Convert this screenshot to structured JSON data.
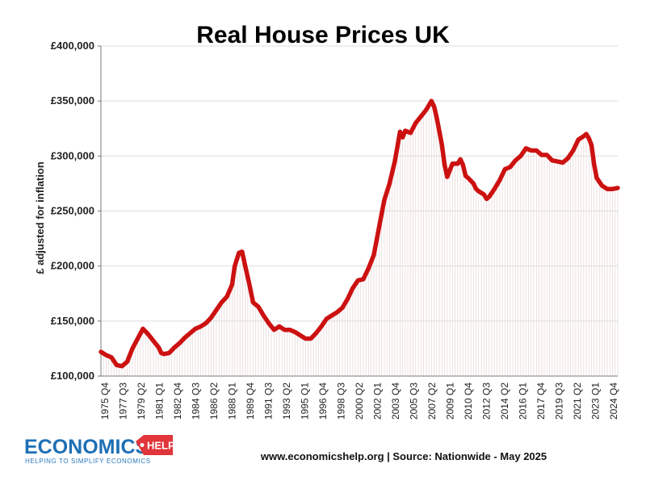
{
  "chart_data": {
    "type": "line",
    "title": "Real House Prices UK",
    "ylabel": "£ adjusted for inflation",
    "xlabel": "",
    "ylim": [
      100000,
      400000
    ],
    "yticks": [
      100000,
      150000,
      200000,
      250000,
      300000,
      350000,
      400000
    ],
    "ytick_labels": [
      "£100,000",
      "£150,000",
      "£200,000",
      "£250,000",
      "£300,000",
      "£350,000",
      "£400,000"
    ],
    "x_tick_labels": [
      "1975 Q4",
      "1977 Q3",
      "1979 Q2",
      "1981 Q1",
      "1982 Q4",
      "1984 Q3",
      "1986 Q2",
      "1988 Q1",
      "1989 Q4",
      "1991 Q3",
      "1993 Q2",
      "1995 Q1",
      "1996 Q4",
      "1998 Q3",
      "2000 Q2",
      "2002 Q1",
      "2003 Q4",
      "2005 Q3",
      "2007 Q2",
      "2009 Q1",
      "2010 Q4",
      "2012 Q3",
      "2014 Q2",
      "2016 Q1",
      "2017 Q4",
      "2019 Q3",
      "2021 Q2",
      "2023 Q1",
      "2024 Q4"
    ],
    "x_range": [
      1975.75,
      2025.0
    ],
    "grid": true,
    "legend": "none",
    "series": [
      {
        "color": "#cc1111",
        "points": [
          [
            1975.75,
            122000
          ],
          [
            1976.25,
            119000
          ],
          [
            1976.75,
            117000
          ],
          [
            1977.25,
            110000
          ],
          [
            1977.75,
            109000
          ],
          [
            1978.25,
            113000
          ],
          [
            1978.75,
            125000
          ],
          [
            1979.25,
            134000
          ],
          [
            1979.75,
            143000
          ],
          [
            1980.25,
            138000
          ],
          [
            1980.75,
            132000
          ],
          [
            1981.25,
            126000
          ],
          [
            1981.5,
            121000
          ],
          [
            1981.75,
            120000
          ],
          [
            1982.25,
            121000
          ],
          [
            1982.75,
            126000
          ],
          [
            1983.25,
            130000
          ],
          [
            1983.75,
            135000
          ],
          [
            1984.25,
            139000
          ],
          [
            1984.75,
            143000
          ],
          [
            1985.25,
            145000
          ],
          [
            1985.75,
            148000
          ],
          [
            1986.25,
            153000
          ],
          [
            1986.75,
            160000
          ],
          [
            1987.25,
            167000
          ],
          [
            1987.75,
            172000
          ],
          [
            1988.25,
            183000
          ],
          [
            1988.5,
            200000
          ],
          [
            1988.9,
            212000
          ],
          [
            1989.2,
            213000
          ],
          [
            1989.5,
            200000
          ],
          [
            1989.9,
            183000
          ],
          [
            1990.25,
            167000
          ],
          [
            1990.75,
            163000
          ],
          [
            1991.25,
            155000
          ],
          [
            1991.75,
            148000
          ],
          [
            1992.25,
            142000
          ],
          [
            1992.75,
            145000
          ],
          [
            1993.25,
            142000
          ],
          [
            1993.75,
            142000
          ],
          [
            1994.25,
            140000
          ],
          [
            1994.75,
            137000
          ],
          [
            1995.25,
            134000
          ],
          [
            1995.75,
            134000
          ],
          [
            1996.25,
            139000
          ],
          [
            1996.75,
            145000
          ],
          [
            1997.25,
            152000
          ],
          [
            1997.75,
            155000
          ],
          [
            1998.25,
            158000
          ],
          [
            1998.75,
            162000
          ],
          [
            1999.25,
            170000
          ],
          [
            1999.75,
            180000
          ],
          [
            2000.25,
            187000
          ],
          [
            2000.75,
            188000
          ],
          [
            2001.25,
            198000
          ],
          [
            2001.75,
            210000
          ],
          [
            2002.25,
            235000
          ],
          [
            2002.75,
            260000
          ],
          [
            2003.25,
            275000
          ],
          [
            2003.75,
            295000
          ],
          [
            2004.25,
            322000
          ],
          [
            2004.5,
            317000
          ],
          [
            2004.75,
            323000
          ],
          [
            2005.25,
            321000
          ],
          [
            2005.75,
            330000
          ],
          [
            2006.25,
            336000
          ],
          [
            2006.75,
            342000
          ],
          [
            2007.25,
            350000
          ],
          [
            2007.5,
            345000
          ],
          [
            2007.75,
            335000
          ],
          [
            2008.25,
            310000
          ],
          [
            2008.5,
            292000
          ],
          [
            2008.75,
            281000
          ],
          [
            2009.25,
            293000
          ],
          [
            2009.75,
            293000
          ],
          [
            2010.0,
            297000
          ],
          [
            2010.25,
            292000
          ],
          [
            2010.5,
            282000
          ],
          [
            2010.75,
            280000
          ],
          [
            2011.25,
            275000
          ],
          [
            2011.5,
            270000
          ],
          [
            2011.75,
            268000
          ],
          [
            2012.25,
            265000
          ],
          [
            2012.5,
            261000
          ],
          [
            2012.75,
            263000
          ],
          [
            2013.25,
            270000
          ],
          [
            2013.75,
            278000
          ],
          [
            2014.25,
            288000
          ],
          [
            2014.75,
            290000
          ],
          [
            2015.25,
            296000
          ],
          [
            2015.75,
            300000
          ],
          [
            2016.25,
            307000
          ],
          [
            2016.75,
            305000
          ],
          [
            2017.25,
            305000
          ],
          [
            2017.75,
            301000
          ],
          [
            2018.25,
            301000
          ],
          [
            2018.75,
            296000
          ],
          [
            2019.25,
            295000
          ],
          [
            2019.75,
            294000
          ],
          [
            2020.25,
            298000
          ],
          [
            2020.75,
            305000
          ],
          [
            2021.25,
            315000
          ],
          [
            2021.75,
            318000
          ],
          [
            2022.0,
            320000
          ],
          [
            2022.25,
            316000
          ],
          [
            2022.5,
            310000
          ],
          [
            2022.75,
            292000
          ],
          [
            2023.0,
            280000
          ],
          [
            2023.5,
            273000
          ],
          [
            2024.0,
            270000
          ],
          [
            2024.5,
            270000
          ],
          [
            2025.0,
            271000
          ]
        ]
      }
    ]
  },
  "footer": {
    "source": "www.economicshelp.org | Source: Nationwide - May 2025"
  },
  "logo": {
    "main": "ECONOMICS",
    "badge": "HELP",
    "tagline": "HELPING TO SIMPLIFY ECONOMICS",
    "primary_color": "#1f6fb5",
    "badge_color": "#e0353b"
  }
}
